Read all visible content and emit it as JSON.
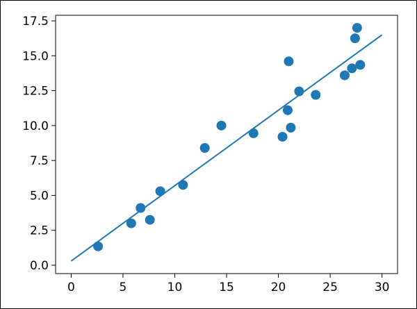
{
  "chart_data": {
    "type": "scatter",
    "title": "",
    "xlabel": "",
    "ylabel": "",
    "xlim": [
      -1.5,
      31.5
    ],
    "ylim": [
      -0.6,
      17.9
    ],
    "xticks": [
      0,
      5,
      10,
      15,
      20,
      25,
      30
    ],
    "yticks": [
      0.0,
      2.5,
      5.0,
      7.5,
      10.0,
      12.5,
      15.0,
      17.5
    ],
    "xtick_labels": [
      "0",
      "5",
      "10",
      "15",
      "20",
      "25",
      "30"
    ],
    "ytick_labels": [
      "0.0",
      "2.5",
      "5.0",
      "7.5",
      "10.0",
      "12.5",
      "15.0",
      "17.5"
    ],
    "grid": false,
    "series": [
      {
        "type": "scatter",
        "color": "#1f77b4",
        "points": [
          {
            "x": 2.6,
            "y": 1.35
          },
          {
            "x": 5.8,
            "y": 3.0
          },
          {
            "x": 6.7,
            "y": 4.1
          },
          {
            "x": 7.6,
            "y": 3.25
          },
          {
            "x": 8.6,
            "y": 5.3
          },
          {
            "x": 10.8,
            "y": 5.75
          },
          {
            "x": 12.9,
            "y": 8.4
          },
          {
            "x": 14.5,
            "y": 10.0
          },
          {
            "x": 17.6,
            "y": 9.45
          },
          {
            "x": 20.4,
            "y": 9.2
          },
          {
            "x": 20.9,
            "y": 11.1
          },
          {
            "x": 21.0,
            "y": 14.6
          },
          {
            "x": 21.2,
            "y": 9.85
          },
          {
            "x": 22.0,
            "y": 12.45
          },
          {
            "x": 23.6,
            "y": 12.2
          },
          {
            "x": 26.4,
            "y": 13.6
          },
          {
            "x": 27.1,
            "y": 14.1
          },
          {
            "x": 27.4,
            "y": 16.25
          },
          {
            "x": 27.6,
            "y": 17.0
          },
          {
            "x": 27.9,
            "y": 14.35
          }
        ]
      },
      {
        "type": "line",
        "color": "#1f77b4",
        "points": [
          {
            "x": 0,
            "y": 0.3
          },
          {
            "x": 30,
            "y": 16.5
          }
        ]
      }
    ]
  }
}
